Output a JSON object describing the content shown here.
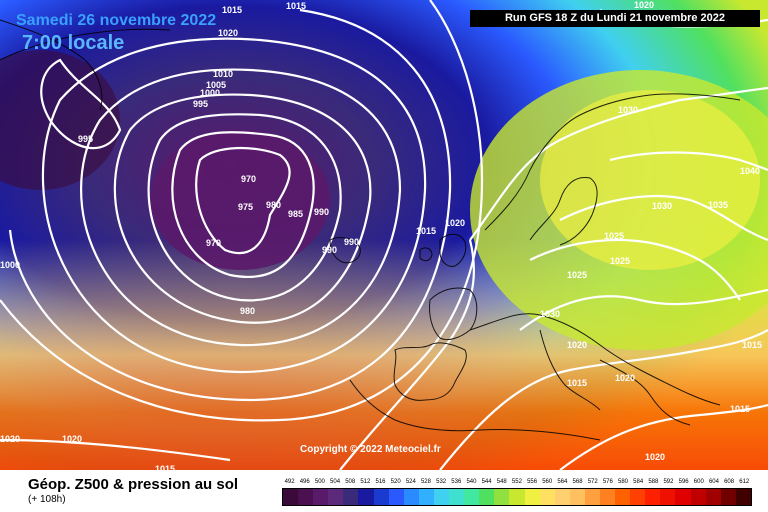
{
  "header": {
    "date": "Samedi 26 novembre 2022",
    "local_time": "7:00 locale",
    "run_info": "Run GFS 18 Z du Lundi 21 novembre 2022"
  },
  "copyright": "Copyright © 2022 Meteociel.fr",
  "isobar_labels": [
    "1015",
    "1015",
    "1020",
    "1010",
    "1005",
    "1000",
    "995",
    "995",
    "970",
    "975",
    "980",
    "985",
    "990",
    "970",
    "990",
    "990",
    "980",
    "1020",
    "1015",
    "1000",
    "1030",
    "1020",
    "1040",
    "1030",
    "1035",
    "1025",
    "1025",
    "1025",
    "1030",
    "1020",
    "1015",
    "1020",
    "1015",
    "1015",
    "1020",
    "1020",
    "1020",
    "1015"
  ],
  "legend": {
    "title": "Géop. Z500 & pression au sol",
    "subtitle": "(+ 108h)",
    "values": [
      "492",
      "496",
      "500",
      "504",
      "508",
      "512",
      "516",
      "520",
      "524",
      "528",
      "532",
      "536",
      "540",
      "544",
      "548",
      "552",
      "556",
      "560",
      "564",
      "568",
      "572",
      "576",
      "580",
      "584",
      "588",
      "592",
      "596",
      "600",
      "604",
      "608",
      "612"
    ],
    "colors": [
      "#3a0a3a",
      "#4a1050",
      "#5a1a6a",
      "#5c2a7a",
      "#3a2a7a",
      "#1a1aa0",
      "#1a3ad0",
      "#2a5aff",
      "#2a8aff",
      "#30b0ff",
      "#40d0f0",
      "#40e0d0",
      "#40e8a0",
      "#50e060",
      "#90e040",
      "#c8e830",
      "#f0f040",
      "#ffe060",
      "#ffd070",
      "#ffc060",
      "#ffa040",
      "#ff8020",
      "#ff6000",
      "#ff4000",
      "#ff2000",
      "#f01000",
      "#e00000",
      "#c00000",
      "#a00000",
      "#700000",
      "#400000"
    ]
  }
}
